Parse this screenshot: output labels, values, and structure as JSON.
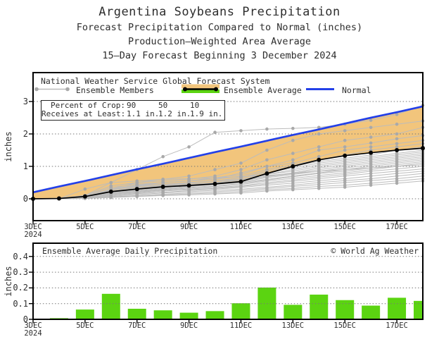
{
  "header": {
    "title": "Argentina Soybeans Precipitation",
    "subtitle1": "Forecast Precipitation Compared to Normal (inches)",
    "subtitle2": "Production–Weighted Area Average",
    "subtitle3": "15–Day Forecast Beginning 3 December 2024"
  },
  "colors": {
    "normal_line": "#2340e8",
    "ensemble_member_line": "#bcbcbc",
    "ensemble_member_dot": "#a9a9a9",
    "ensemble_average_line": "#000000",
    "deficit_fill_orange": "#f2c57c",
    "surplus_fill_green": "#5bd411",
    "bar_fill_green": "#5bd411",
    "grid_dotted": "#777777",
    "axis_black": "#000000"
  },
  "chart_data": [
    {
      "type": "line",
      "name": "cumulative-forecast-vs-normal",
      "source_label": "National Weather Service Global Forecast System",
      "legend": [
        {
          "label": "Ensemble Members",
          "style": "gray-line-with-dots"
        },
        {
          "label": "Ensemble Average",
          "style": "black-line-orange-green-band"
        },
        {
          "label": "Normal",
          "style": "blue-line"
        }
      ],
      "legend_position": "top-inside",
      "crop_box": {
        "row1_label": "Percent of Crop:",
        "row1_values": [
          "90",
          "50",
          "10"
        ],
        "row2_label": "Receives at Least:",
        "row2_values": [
          "1.1 in.",
          "1.2 in.",
          "1.9 in."
        ]
      },
      "ylabel": "inches",
      "yticks": [
        0,
        1,
        2,
        3
      ],
      "ylim": [
        -0.67,
        3.89
      ],
      "grid": "dotted-horizontal",
      "x_days": [
        3,
        4,
        5,
        6,
        7,
        8,
        9,
        10,
        11,
        12,
        13,
        14,
        15,
        16,
        17,
        18
      ],
      "x_tick_days": [
        3,
        5,
        7,
        9,
        11,
        13,
        15,
        17
      ],
      "x_tick_labels": [
        "3DEC",
        "5DEC",
        "7DEC",
        "9DEC",
        "11DEC",
        "13DEC",
        "15DEC",
        "17DEC"
      ],
      "x_first_tick_year": "2024",
      "normal": [
        0.2,
        0.38,
        0.55,
        0.73,
        0.91,
        1.08,
        1.26,
        1.44,
        1.61,
        1.79,
        1.97,
        2.14,
        2.32,
        2.5,
        2.67,
        2.85
      ],
      "ensemble_average": [
        0.0,
        0.01,
        0.07,
        0.22,
        0.3,
        0.37,
        0.41,
        0.46,
        0.53,
        0.78,
        1.0,
        1.2,
        1.33,
        1.42,
        1.5,
        1.56
      ],
      "members": [
        [
          0,
          0,
          0.1,
          0.5,
          0.9,
          1.3,
          1.6,
          2.05,
          2.1,
          2.15,
          2.17,
          2.2,
          2.3,
          2.42,
          2.6,
          2.88
        ],
        [
          0,
          0,
          0.05,
          0.3,
          0.5,
          0.6,
          0.7,
          0.9,
          1.1,
          1.5,
          1.8,
          2.0,
          2.1,
          2.2,
          2.3,
          2.4
        ],
        [
          0,
          0,
          0.1,
          0.4,
          0.5,
          0.55,
          0.6,
          0.7,
          0.9,
          1.2,
          1.4,
          1.6,
          1.8,
          1.9,
          2.0,
          2.2
        ],
        [
          0,
          0.02,
          0.1,
          0.35,
          0.45,
          0.5,
          0.55,
          0.6,
          0.8,
          1.0,
          1.2,
          1.5,
          1.6,
          1.72,
          1.85,
          1.95
        ],
        [
          0,
          0,
          0.05,
          0.3,
          0.4,
          0.5,
          0.55,
          0.65,
          0.75,
          1.0,
          1.1,
          1.3,
          1.5,
          1.6,
          1.7,
          1.8
        ],
        [
          0,
          0,
          0.08,
          0.3,
          0.42,
          0.5,
          0.55,
          0.6,
          0.7,
          0.9,
          1.05,
          1.2,
          1.35,
          1.5,
          1.6,
          1.7
        ],
        [
          0,
          0.01,
          0.06,
          0.28,
          0.38,
          0.45,
          0.5,
          0.55,
          0.65,
          0.85,
          1.0,
          1.15,
          1.25,
          1.35,
          1.5,
          1.6
        ],
        [
          0,
          0,
          0.05,
          0.25,
          0.35,
          0.42,
          0.48,
          0.55,
          0.65,
          0.8,
          0.95,
          1.1,
          1.2,
          1.3,
          1.4,
          1.5
        ],
        [
          0,
          0.02,
          0.08,
          0.3,
          0.4,
          0.45,
          0.5,
          0.55,
          0.6,
          0.75,
          0.9,
          1.05,
          1.15,
          1.25,
          1.35,
          1.45
        ],
        [
          0,
          0,
          0.04,
          0.2,
          0.3,
          0.38,
          0.44,
          0.5,
          0.6,
          0.75,
          0.85,
          1.0,
          1.1,
          1.2,
          1.3,
          1.4
        ],
        [
          0,
          0,
          0.06,
          0.25,
          0.33,
          0.4,
          0.45,
          0.5,
          0.58,
          0.7,
          0.8,
          0.95,
          1.05,
          1.15,
          1.25,
          1.35
        ],
        [
          0,
          0.01,
          0.05,
          0.22,
          0.3,
          0.36,
          0.42,
          0.48,
          0.55,
          0.68,
          0.78,
          0.9,
          1.0,
          1.1,
          1.2,
          1.3
        ],
        [
          0,
          0,
          0.05,
          0.2,
          0.28,
          0.35,
          0.4,
          0.45,
          0.52,
          0.65,
          0.75,
          0.85,
          0.95,
          1.05,
          1.15,
          1.25
        ],
        [
          0,
          0,
          0.04,
          0.18,
          0.26,
          0.32,
          0.38,
          0.44,
          0.5,
          0.6,
          0.7,
          0.8,
          0.9,
          1.0,
          1.1,
          1.2
        ],
        [
          0,
          0.01,
          0.04,
          0.16,
          0.24,
          0.3,
          0.35,
          0.4,
          0.47,
          0.58,
          0.68,
          0.78,
          0.85,
          0.95,
          1.05,
          1.15
        ],
        [
          0,
          0,
          0.03,
          0.15,
          0.22,
          0.28,
          0.33,
          0.38,
          0.44,
          0.55,
          0.63,
          0.72,
          0.8,
          0.9,
          1.0,
          1.1
        ],
        [
          0,
          0,
          0.03,
          0.14,
          0.2,
          0.26,
          0.3,
          0.35,
          0.4,
          0.5,
          0.58,
          0.67,
          0.75,
          0.85,
          0.92,
          1.0
        ],
        [
          0,
          0.01,
          0.03,
          0.12,
          0.18,
          0.24,
          0.28,
          0.32,
          0.38,
          0.46,
          0.54,
          0.62,
          0.7,
          0.78,
          0.85,
          0.92
        ],
        [
          0,
          0,
          0.02,
          0.1,
          0.16,
          0.2,
          0.25,
          0.3,
          0.35,
          0.42,
          0.48,
          0.56,
          0.62,
          0.7,
          0.78,
          0.85
        ],
        [
          0,
          0,
          0.02,
          0.08,
          0.13,
          0.18,
          0.22,
          0.26,
          0.3,
          0.36,
          0.42,
          0.5,
          0.56,
          0.62,
          0.7,
          0.78
        ],
        [
          0,
          0,
          0.02,
          0.06,
          0.1,
          0.14,
          0.18,
          0.22,
          0.26,
          0.32,
          0.38,
          0.44,
          0.5,
          0.56,
          0.62,
          0.7
        ],
        [
          0,
          0,
          0.01,
          0.05,
          0.08,
          0.12,
          0.15,
          0.18,
          0.22,
          0.28,
          0.32,
          0.38,
          0.42,
          0.48,
          0.55,
          0.62
        ],
        [
          0,
          0,
          0.01,
          0.04,
          0.07,
          0.1,
          0.12,
          0.15,
          0.18,
          0.24,
          0.28,
          0.32,
          0.36,
          0.42,
          0.48,
          0.55
        ],
        [
          0,
          0,
          0.3,
          0.5,
          0.55,
          0.6,
          0.62,
          0.65,
          0.68,
          0.72,
          0.78,
          0.85,
          0.9,
          0.95,
          1.0,
          1.05
        ]
      ]
    },
    {
      "type": "bar",
      "name": "ensemble-average-daily-precipitation",
      "title": "Ensemble Average Daily Precipitation",
      "copyright": "© World Ag Weather",
      "ylabel": "inches",
      "yticks": [
        0,
        0.1,
        0.2,
        0.3,
        0.4
      ],
      "ylim": [
        0,
        0.48
      ],
      "grid": "dotted-horizontal",
      "days": [
        4,
        5,
        6,
        7,
        8,
        9,
        10,
        11,
        12,
        13,
        14,
        15,
        16,
        17,
        18
      ],
      "values": [
        0.005,
        0.06,
        0.16,
        0.065,
        0.055,
        0.04,
        0.05,
        0.1,
        0.2,
        0.09,
        0.155,
        0.12,
        0.085,
        0.135,
        0.115
      ],
      "x_tick_days": [
        3,
        5,
        7,
        9,
        11,
        13,
        15,
        17
      ],
      "x_tick_labels": [
        "3DEC",
        "5DEC",
        "7DEC",
        "9DEC",
        "11DEC",
        "13DEC",
        "15DEC",
        "17DEC"
      ],
      "x_first_tick_year": "2024"
    }
  ]
}
